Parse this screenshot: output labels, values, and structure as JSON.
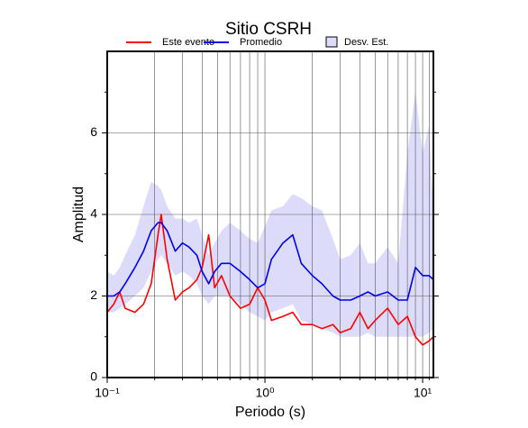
{
  "chart_data": {
    "type": "line",
    "title": "Sitio CSRH",
    "x_label": "Periodo (s)",
    "y_label": "Amplitud",
    "xscale": "log",
    "xlim": [
      0.1,
      11.7
    ],
    "ylim": [
      0,
      8
    ],
    "xticks": [
      {
        "value": 0.1,
        "label": "10⁻¹"
      },
      {
        "value": 1,
        "label": "10⁰"
      },
      {
        "value": 10,
        "label": "10¹"
      }
    ],
    "xgrid": [
      0.2,
      0.3,
      0.4,
      0.5,
      0.6,
      0.7,
      0.8,
      0.9,
      2,
      3,
      4,
      5,
      6,
      7,
      8,
      9,
      11
    ],
    "yticks": [
      0,
      2,
      4,
      6
    ],
    "yminor": [
      1,
      3,
      5,
      7
    ],
    "grid": true,
    "legend": "top",
    "x": [
      0.1,
      0.11,
      0.12,
      0.13,
      0.15,
      0.17,
      0.19,
      0.21,
      0.22,
      0.24,
      0.27,
      0.3,
      0.33,
      0.37,
      0.4,
      0.44,
      0.48,
      0.53,
      0.6,
      0.7,
      0.8,
      0.9,
      1.0,
      1.1,
      1.3,
      1.5,
      1.7,
      2.0,
      2.3,
      2.7,
      3.0,
      3.5,
      4.0,
      4.5,
      5.0,
      6.0,
      7.0,
      8.0,
      9.0,
      10.0,
      11.0,
      11.7
    ],
    "series": [
      {
        "name": "Este evento",
        "color": "#ff0000",
        "values": [
          1.6,
          1.8,
          2.1,
          1.7,
          1.6,
          1.8,
          2.3,
          3.5,
          4.0,
          2.9,
          1.9,
          2.1,
          2.2,
          2.4,
          2.7,
          3.5,
          2.2,
          2.5,
          2.0,
          1.7,
          1.8,
          2.2,
          1.9,
          1.4,
          1.5,
          1.6,
          1.3,
          1.3,
          1.2,
          1.3,
          1.1,
          1.2,
          1.6,
          1.2,
          1.4,
          1.7,
          1.3,
          1.5,
          1.0,
          0.8,
          0.9,
          1.0
        ]
      },
      {
        "name": "Promedio",
        "color": "#0000ee",
        "values": [
          2.0,
          2.0,
          2.1,
          2.3,
          2.7,
          3.1,
          3.6,
          3.8,
          3.8,
          3.6,
          3.1,
          3.3,
          3.2,
          3.0,
          2.6,
          2.3,
          2.6,
          2.8,
          2.8,
          2.6,
          2.4,
          2.2,
          2.3,
          2.9,
          3.3,
          3.5,
          2.8,
          2.5,
          2.3,
          2.0,
          1.9,
          1.9,
          2.0,
          2.1,
          2.0,
          2.1,
          1.9,
          1.9,
          2.7,
          2.5,
          2.5,
          2.4
        ]
      },
      {
        "name": "Desv. Est.",
        "color": "#dcdcfa",
        "upper": [
          2.6,
          2.5,
          2.7,
          3.0,
          3.5,
          4.2,
          4.8,
          4.7,
          4.6,
          4.2,
          3.9,
          3.9,
          3.8,
          3.9,
          3.5,
          3.0,
          3.3,
          3.6,
          3.8,
          3.6,
          3.4,
          3.3,
          3.7,
          4.1,
          4.2,
          4.5,
          4.4,
          4.2,
          4.1,
          3.4,
          2.9,
          3.0,
          3.3,
          2.8,
          2.8,
          3.2,
          2.8,
          5.5,
          7.0,
          5.5,
          6.2,
          4.0
        ],
        "lower": [
          1.6,
          1.6,
          1.7,
          1.8,
          2.0,
          2.2,
          2.6,
          2.9,
          3.0,
          2.8,
          2.5,
          2.6,
          2.5,
          2.3,
          2.0,
          1.8,
          2.0,
          2.0,
          2.0,
          1.8,
          1.6,
          1.5,
          1.4,
          1.6,
          1.7,
          1.8,
          1.4,
          1.3,
          1.2,
          1.1,
          1.0,
          1.0,
          1.0,
          1.1,
          1.0,
          1.0,
          1.0,
          1.0,
          1.0,
          1.0,
          1.1,
          1.2
        ]
      }
    ]
  }
}
